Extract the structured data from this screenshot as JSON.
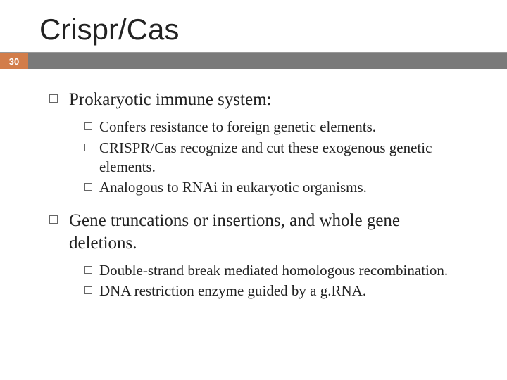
{
  "title": "Crispr/Cas",
  "slide_number": "30",
  "colors": {
    "accent": "#d27d4a",
    "stripe": "#7a7a7a",
    "text": "#222222",
    "bullet_border": "#666666",
    "background": "#ffffff"
  },
  "typography": {
    "title_font": "Arial",
    "title_size_pt": 32,
    "body_font": "Georgia",
    "l1_size_pt": 19,
    "l2_size_pt": 16
  },
  "content": {
    "items": [
      {
        "text": "Prokaryotic immune system:",
        "children": [
          {
            "text": "Confers resistance to foreign genetic elements."
          },
          {
            "text": "CRISPR/Cas recognize and cut these exogenous genetic elements."
          },
          {
            "text": "Analogous to RNAi in eukaryotic organisms."
          }
        ]
      },
      {
        "text": "Gene truncations or insertions, and whole gene deletions.",
        "children": [
          {
            "text": "Double-strand break mediated homologous recombination."
          },
          {
            "text": "DNA restriction enzyme guided by a g.RNA."
          }
        ]
      }
    ]
  }
}
